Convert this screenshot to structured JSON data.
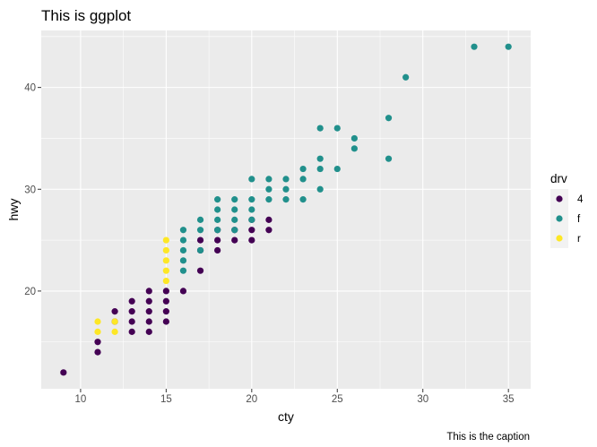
{
  "chart_data": {
    "type": "scatter",
    "title": "This is ggplot",
    "caption": "This is the caption",
    "xlabel": "cty",
    "ylabel": "hwy",
    "xlim": [
      7.7,
      36.3
    ],
    "ylim": [
      10.4,
      45.6
    ],
    "xticks": [
      10,
      15,
      20,
      25,
      30,
      35
    ],
    "yticks": [
      20,
      30,
      40
    ],
    "grid": true,
    "legend": {
      "title": "drv",
      "placement": "right"
    },
    "series": [
      {
        "name": "4",
        "color": "#440154",
        "points": [
          [
            9,
            12
          ],
          [
            11,
            14
          ],
          [
            11,
            15
          ],
          [
            12,
            17
          ],
          [
            12,
            18
          ],
          [
            13,
            16
          ],
          [
            13,
            17
          ],
          [
            13,
            18
          ],
          [
            13,
            19
          ],
          [
            14,
            16
          ],
          [
            14,
            17
          ],
          [
            14,
            18
          ],
          [
            14,
            19
          ],
          [
            14,
            20
          ],
          [
            15,
            17
          ],
          [
            15,
            18
          ],
          [
            15,
            19
          ],
          [
            15,
            20
          ],
          [
            16,
            20
          ],
          [
            17,
            22
          ],
          [
            17,
            24
          ],
          [
            17,
            25
          ],
          [
            18,
            24
          ],
          [
            18,
            25
          ],
          [
            18,
            26
          ],
          [
            19,
            25
          ],
          [
            19,
            26
          ],
          [
            20,
            25
          ],
          [
            20,
            26
          ],
          [
            20,
            27
          ],
          [
            21,
            26
          ],
          [
            21,
            27
          ]
        ]
      },
      {
        "name": "f",
        "color": "#21908C",
        "points": [
          [
            16,
            22
          ],
          [
            16,
            23
          ],
          [
            16,
            24
          ],
          [
            16,
            25
          ],
          [
            16,
            26
          ],
          [
            17,
            24
          ],
          [
            17,
            26
          ],
          [
            17,
            27
          ],
          [
            18,
            26
          ],
          [
            18,
            27
          ],
          [
            18,
            28
          ],
          [
            18,
            29
          ],
          [
            19,
            26
          ],
          [
            19,
            27
          ],
          [
            19,
            28
          ],
          [
            19,
            29
          ],
          [
            20,
            27
          ],
          [
            20,
            28
          ],
          [
            20,
            29
          ],
          [
            20,
            31
          ],
          [
            21,
            29
          ],
          [
            21,
            30
          ],
          [
            21,
            31
          ],
          [
            22,
            29
          ],
          [
            22,
            30
          ],
          [
            22,
            31
          ],
          [
            23,
            29
          ],
          [
            23,
            31
          ],
          [
            23,
            32
          ],
          [
            24,
            30
          ],
          [
            24,
            32
          ],
          [
            24,
            33
          ],
          [
            24,
            36
          ],
          [
            25,
            32
          ],
          [
            25,
            36
          ],
          [
            26,
            34
          ],
          [
            26,
            35
          ],
          [
            28,
            33
          ],
          [
            28,
            37
          ],
          [
            29,
            41
          ],
          [
            33,
            44
          ],
          [
            35,
            44
          ]
        ]
      },
      {
        "name": "r",
        "color": "#FDE725",
        "points": [
          [
            11,
            16
          ],
          [
            11,
            17
          ],
          [
            12,
            16
          ],
          [
            12,
            17
          ],
          [
            15,
            21
          ],
          [
            15,
            22
          ],
          [
            15,
            23
          ],
          [
            15,
            24
          ],
          [
            15,
            25
          ]
        ]
      }
    ]
  }
}
